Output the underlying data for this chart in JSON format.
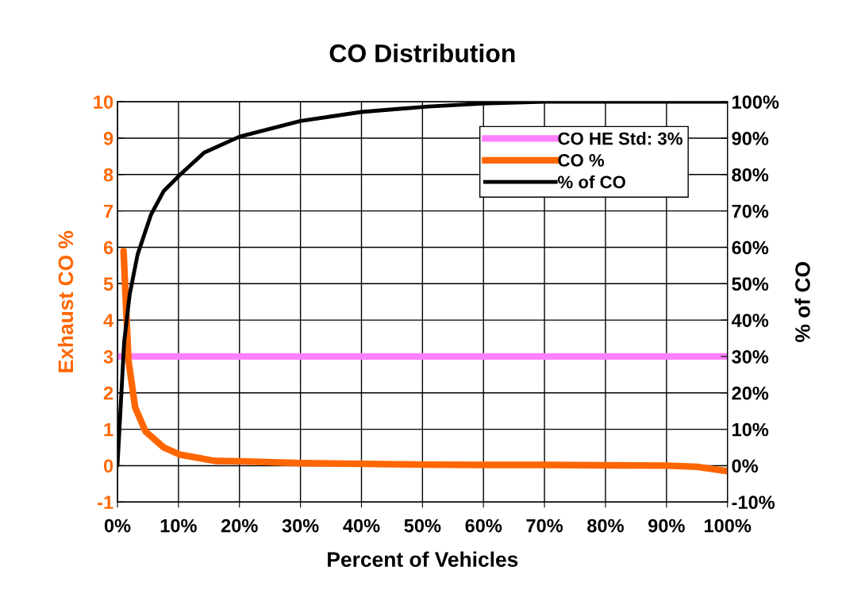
{
  "chart_data": {
    "type": "line",
    "title": "CO Distribution",
    "xlabel": "Percent of Vehicles",
    "ylabel": "Exhaust CO %",
    "y2label": "% of CO",
    "xlim": [
      0,
      100
    ],
    "xticks": [
      {
        "value": 0,
        "label": "0%"
      },
      {
        "value": 10,
        "label": "10%"
      },
      {
        "value": 20,
        "label": "20%"
      },
      {
        "value": 30,
        "label": "30%"
      },
      {
        "value": 40,
        "label": "40%"
      },
      {
        "value": 50,
        "label": "50%"
      },
      {
        "value": 60,
        "label": "60%"
      },
      {
        "value": 70,
        "label": "70%"
      },
      {
        "value": 80,
        "label": "80%"
      },
      {
        "value": 90,
        "label": "90%"
      },
      {
        "value": 100,
        "label": "100%"
      }
    ],
    "ylim": [
      -1,
      10
    ],
    "yticks": [
      -1,
      0,
      1,
      2,
      3,
      4,
      5,
      6,
      7,
      8,
      9,
      10
    ],
    "y2lim": [
      -10,
      100
    ],
    "y2ticks": [
      {
        "value": -10,
        "label": "-10%"
      },
      {
        "value": 0,
        "label": "0%"
      },
      {
        "value": 10,
        "label": "10%"
      },
      {
        "value": 20,
        "label": "20%"
      },
      {
        "value": 30,
        "label": "30%"
      },
      {
        "value": 40,
        "label": "40%"
      },
      {
        "value": 50,
        "label": "50%"
      },
      {
        "value": 60,
        "label": "60%"
      },
      {
        "value": 70,
        "label": "70%"
      },
      {
        "value": 80,
        "label": "80%"
      },
      {
        "value": 90,
        "label": "90%"
      },
      {
        "value": 100,
        "label": "100%"
      }
    ],
    "ref_lines": [
      {
        "axis": "y",
        "value": 3,
        "label": "CO HE Std: 3%",
        "color": "#ff80ff"
      }
    ],
    "series": [
      {
        "name": "CO %",
        "color": "#ff6600",
        "x": [
          1,
          1.8,
          2.9,
          4.6,
          7.6,
          10.3,
          16,
          20,
          30,
          40,
          50,
          60,
          70,
          80,
          90,
          95,
          100
        ],
        "values": [
          5.9,
          2.9,
          1.6,
          0.94,
          0.5,
          0.3,
          0.13,
          0.12,
          0.07,
          0.05,
          0.03,
          0.02,
          0.02,
          0.01,
          0.0,
          -0.03,
          -0.15
        ]
      },
      {
        "name": "% of CO",
        "color": "#000000",
        "axis": "y2",
        "x": [
          0,
          1.1,
          2,
          3.3,
          5.5,
          7.6,
          10.3,
          14.2,
          20,
          30,
          40,
          51,
          60,
          70,
          80,
          90,
          100
        ],
        "values": [
          0,
          34,
          47,
          58,
          69,
          75.5,
          80,
          86,
          90.4,
          94.7,
          97.2,
          98.7,
          99.5,
          100,
          100,
          100,
          100
        ]
      }
    ],
    "grid": true,
    "legend": "top right",
    "line_style": "solid",
    "marker": "none"
  }
}
